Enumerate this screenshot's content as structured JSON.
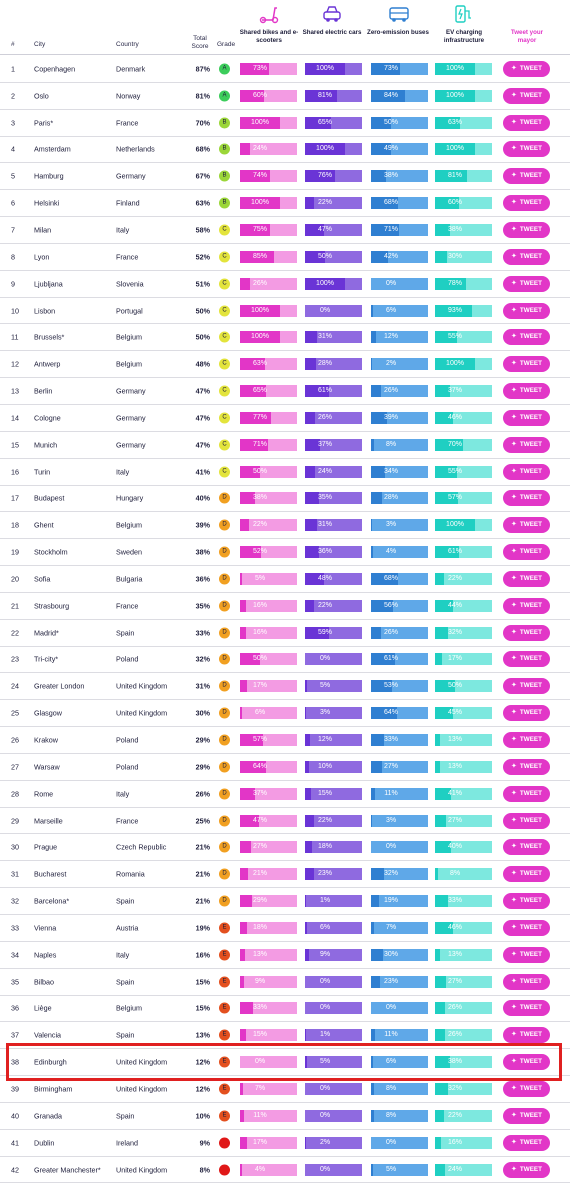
{
  "header": {
    "num": "#",
    "city": "City",
    "country": "Country",
    "total_score": "Total Score",
    "grade": "Grade",
    "bikes": "Shared bikes and e-scooters",
    "cars": "Shared electric cars",
    "buses": "Zero-emission buses",
    "ev": "EV charging infrastructure",
    "tweet": "Tweet your mayor",
    "icons": [
      "scooter-icon",
      "car-icon",
      "bus-icon",
      "charger-icon"
    ]
  },
  "colors": {
    "bikes_dark": "#e236c7",
    "bikes_light": "#f39be3",
    "cars_dark": "#6a34d6",
    "cars_light": "#8f6ae0",
    "buses_dark": "#2f7fd1",
    "buses_light": "#5fa8e8",
    "ev_dark": "#1fcfc2",
    "ev_light": "#7de8df",
    "grade_A": "#3ccd5b",
    "grade_B": "#9bd639",
    "grade_C": "#e3e43c",
    "grade_D": "#f1a021",
    "grade_E": "#e3501f",
    "grade_F": "#e01818",
    "tweet": "#e236c7",
    "highlight": "#e02020"
  },
  "tweet_label": "TWEET",
  "highlight_rank": 38,
  "rows": [
    {
      "num": "1",
      "city": "Copenhagen",
      "country": "Denmark",
      "score": "87%",
      "grade": "A",
      "bikes": "73%",
      "cars": "100%",
      "buses": "73%",
      "ev": "100%"
    },
    {
      "num": "2",
      "city": "Oslo",
      "country": "Norway",
      "score": "81%",
      "grade": "A",
      "bikes": "60%",
      "cars": "81%",
      "buses": "84%",
      "ev": "100%"
    },
    {
      "num": "3",
      "city": "Paris*",
      "country": "France",
      "score": "70%",
      "grade": "B",
      "bikes": "100%",
      "cars": "65%",
      "buses": "50%",
      "ev": "63%"
    },
    {
      "num": "4",
      "city": "Amsterdam",
      "country": "Netherlands",
      "score": "68%",
      "grade": "B",
      "bikes": "24%",
      "cars": "100%",
      "buses": "49%",
      "ev": "100%"
    },
    {
      "num": "5",
      "city": "Hamburg",
      "country": "Germany",
      "score": "67%",
      "grade": "B",
      "bikes": "74%",
      "cars": "76%",
      "buses": "38%",
      "ev": "81%"
    },
    {
      "num": "6",
      "city": "Helsinki",
      "country": "Finland",
      "score": "63%",
      "grade": "B",
      "bikes": "100%",
      "cars": "22%",
      "buses": "68%",
      "ev": "60%"
    },
    {
      "num": "7",
      "city": "Milan",
      "country": "Italy",
      "score": "58%",
      "grade": "C",
      "bikes": "75%",
      "cars": "47%",
      "buses": "71%",
      "ev": "38%"
    },
    {
      "num": "8",
      "city": "Lyon",
      "country": "France",
      "score": "52%",
      "grade": "C",
      "bikes": "85%",
      "cars": "50%",
      "buses": "42%",
      "ev": "30%"
    },
    {
      "num": "9",
      "city": "Ljubljana",
      "country": "Slovenia",
      "score": "51%",
      "grade": "C",
      "bikes": "26%",
      "cars": "100%",
      "buses": "0%",
      "ev": "78%"
    },
    {
      "num": "10",
      "city": "Lisbon",
      "country": "Portugal",
      "score": "50%",
      "grade": "C",
      "bikes": "100%",
      "cars": "0%",
      "buses": "6%",
      "ev": "93%"
    },
    {
      "num": "11",
      "city": "Brussels*",
      "country": "Belgium",
      "score": "50%",
      "grade": "C",
      "bikes": "100%",
      "cars": "31%",
      "buses": "12%",
      "ev": "55%"
    },
    {
      "num": "12",
      "city": "Antwerp",
      "country": "Belgium",
      "score": "48%",
      "grade": "C",
      "bikes": "63%",
      "cars": "28%",
      "buses": "2%",
      "ev": "100%"
    },
    {
      "num": "13",
      "city": "Berlin",
      "country": "Germany",
      "score": "47%",
      "grade": "C",
      "bikes": "65%",
      "cars": "61%",
      "buses": "26%",
      "ev": "37%"
    },
    {
      "num": "14",
      "city": "Cologne",
      "country": "Germany",
      "score": "47%",
      "grade": "C",
      "bikes": "77%",
      "cars": "26%",
      "buses": "39%",
      "ev": "46%"
    },
    {
      "num": "15",
      "city": "Munich",
      "country": "Germany",
      "score": "47%",
      "grade": "C",
      "bikes": "71%",
      "cars": "37%",
      "buses": "8%",
      "ev": "70%"
    },
    {
      "num": "16",
      "city": "Turin",
      "country": "Italy",
      "score": "41%",
      "grade": "C",
      "bikes": "50%",
      "cars": "24%",
      "buses": "34%",
      "ev": "55%"
    },
    {
      "num": "17",
      "city": "Budapest",
      "country": "Hungary",
      "score": "40%",
      "grade": "D",
      "bikes": "38%",
      "cars": "35%",
      "buses": "28%",
      "ev": "57%"
    },
    {
      "num": "18",
      "city": "Ghent",
      "country": "Belgium",
      "score": "39%",
      "grade": "D",
      "bikes": "22%",
      "cars": "31%",
      "buses": "3%",
      "ev": "100%"
    },
    {
      "num": "19",
      "city": "Stockholm",
      "country": "Sweden",
      "score": "38%",
      "grade": "D",
      "bikes": "52%",
      "cars": "36%",
      "buses": "4%",
      "ev": "61%"
    },
    {
      "num": "20",
      "city": "Sofia",
      "country": "Bulgaria",
      "score": "36%",
      "grade": "D",
      "bikes": "5%",
      "cars": "48%",
      "buses": "68%",
      "ev": "22%"
    },
    {
      "num": "21",
      "city": "Strasbourg",
      "country": "France",
      "score": "35%",
      "grade": "D",
      "bikes": "16%",
      "cars": "22%",
      "buses": "56%",
      "ev": "44%"
    },
    {
      "num": "22",
      "city": "Madrid*",
      "country": "Spain",
      "score": "33%",
      "grade": "D",
      "bikes": "16%",
      "cars": "59%",
      "buses": "26%",
      "ev": "32%"
    },
    {
      "num": "23",
      "city": "Tri-city*",
      "country": "Poland",
      "score": "32%",
      "grade": "D",
      "bikes": "50%",
      "cars": "0%",
      "buses": "61%",
      "ev": "17%"
    },
    {
      "num": "24",
      "city": "Greater London",
      "country": "United Kingdom",
      "score": "31%",
      "grade": "D",
      "bikes": "17%",
      "cars": "5%",
      "buses": "53%",
      "ev": "50%"
    },
    {
      "num": "25",
      "city": "Glasgow",
      "country": "United Kingdom",
      "score": "30%",
      "grade": "D",
      "bikes": "6%",
      "cars": "3%",
      "buses": "64%",
      "ev": "45%"
    },
    {
      "num": "26",
      "city": "Krakow",
      "country": "Poland",
      "score": "29%",
      "grade": "D",
      "bikes": "57%",
      "cars": "12%",
      "buses": "33%",
      "ev": "13%"
    },
    {
      "num": "27",
      "city": "Warsaw",
      "country": "Poland",
      "score": "29%",
      "grade": "D",
      "bikes": "64%",
      "cars": "10%",
      "buses": "27%",
      "ev": "13%"
    },
    {
      "num": "28",
      "city": "Rome",
      "country": "Italy",
      "score": "26%",
      "grade": "D",
      "bikes": "37%",
      "cars": "15%",
      "buses": "11%",
      "ev": "41%"
    },
    {
      "num": "29",
      "city": "Marseille",
      "country": "France",
      "score": "25%",
      "grade": "D",
      "bikes": "47%",
      "cars": "22%",
      "buses": "3%",
      "ev": "27%"
    },
    {
      "num": "30",
      "city": "Prague",
      "country": "Czech Republic",
      "score": "21%",
      "grade": "D",
      "bikes": "27%",
      "cars": "18%",
      "buses": "0%",
      "ev": "40%"
    },
    {
      "num": "31",
      "city": "Bucharest",
      "country": "Romania",
      "score": "21%",
      "grade": "D",
      "bikes": "21%",
      "cars": "23%",
      "buses": "32%",
      "ev": "8%"
    },
    {
      "num": "32",
      "city": "Barcelona*",
      "country": "Spain",
      "score": "21%",
      "grade": "D",
      "bikes": "29%",
      "cars": "1%",
      "buses": "19%",
      "ev": "33%"
    },
    {
      "num": "33",
      "city": "Vienna",
      "country": "Austria",
      "score": "19%",
      "grade": "E",
      "bikes": "18%",
      "cars": "6%",
      "buses": "7%",
      "ev": "46%"
    },
    {
      "num": "34",
      "city": "Naples",
      "country": "Italy",
      "score": "16%",
      "grade": "E",
      "bikes": "13%",
      "cars": "9%",
      "buses": "30%",
      "ev": "13%"
    },
    {
      "num": "35",
      "city": "Bilbao",
      "country": "Spain",
      "score": "15%",
      "grade": "E",
      "bikes": "9%",
      "cars": "0%",
      "buses": "23%",
      "ev": "27%"
    },
    {
      "num": "36",
      "city": "Liège",
      "country": "Belgium",
      "score": "15%",
      "grade": "E",
      "bikes": "33%",
      "cars": "0%",
      "buses": "0%",
      "ev": "26%"
    },
    {
      "num": "37",
      "city": "Valencia",
      "country": "Spain",
      "score": "13%",
      "grade": "E",
      "bikes": "15%",
      "cars": "1%",
      "buses": "11%",
      "ev": "26%"
    },
    {
      "num": "38",
      "city": "Edinburgh",
      "country": "United Kingdom",
      "score": "12%",
      "grade": "E",
      "bikes": "0%",
      "cars": "5%",
      "buses": "6%",
      "ev": "38%"
    },
    {
      "num": "39",
      "city": "Birmingham",
      "country": "United Kingdom",
      "score": "12%",
      "grade": "E",
      "bikes": "7%",
      "cars": "0%",
      "buses": "8%",
      "ev": "32%"
    },
    {
      "num": "40",
      "city": "Granada",
      "country": "Spain",
      "score": "10%",
      "grade": "E",
      "bikes": "11%",
      "cars": "0%",
      "buses": "8%",
      "ev": "22%"
    },
    {
      "num": "41",
      "city": "Dublin",
      "country": "Ireland",
      "score": "9%",
      "grade": "F",
      "bikes": "17%",
      "cars": "2%",
      "buses": "0%",
      "ev": "16%"
    },
    {
      "num": "42",
      "city": "Greater Manchester*",
      "country": "United Kingdom",
      "score": "8%",
      "grade": "F",
      "bikes": "4%",
      "cars": "0%",
      "buses": "5%",
      "ev": "24%"
    }
  ]
}
